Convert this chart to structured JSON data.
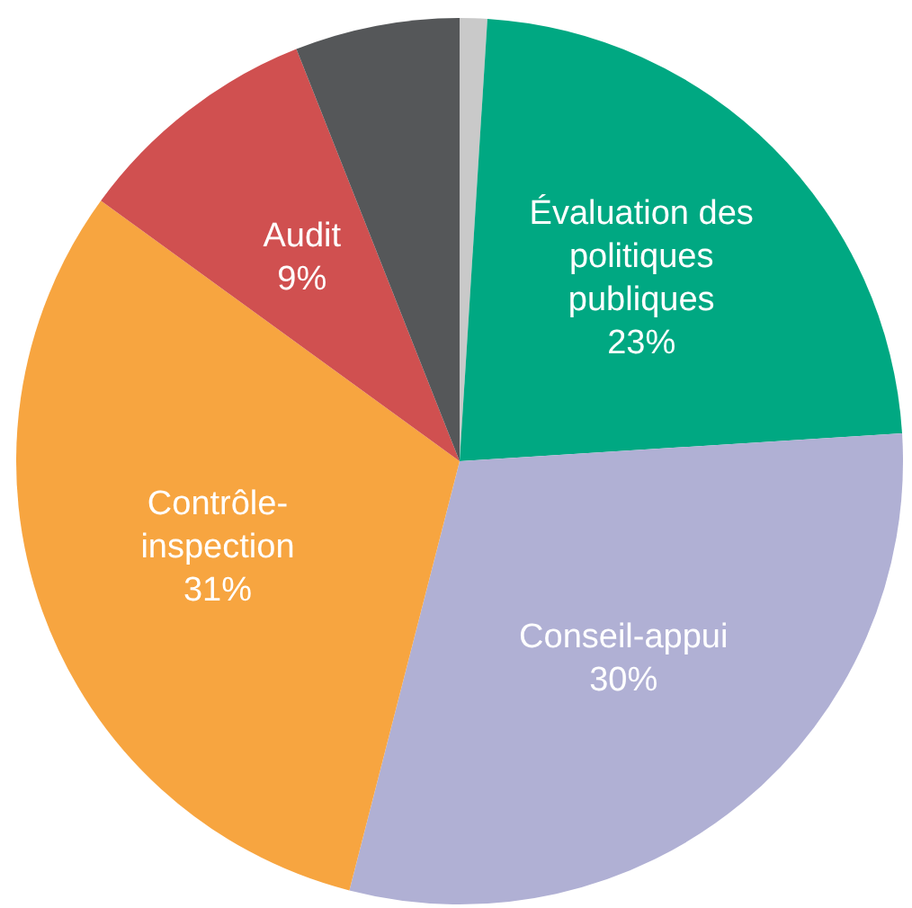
{
  "chart_data": {
    "type": "pie",
    "categories": [
      null,
      "Évaluation des politiques publiques",
      "Conseil-appui",
      "Contrôle-inspection",
      "Audit",
      null
    ],
    "values": [
      1,
      23,
      30,
      31,
      9,
      6
    ],
    "value_labels": [
      null,
      "23%",
      "30%",
      "31%",
      "9%",
      null
    ],
    "colors": [
      "#c9c9c9",
      "#00a882",
      "#b0b0d4",
      "#f7a540",
      "#d05050",
      "#555759"
    ],
    "legend": false
  }
}
